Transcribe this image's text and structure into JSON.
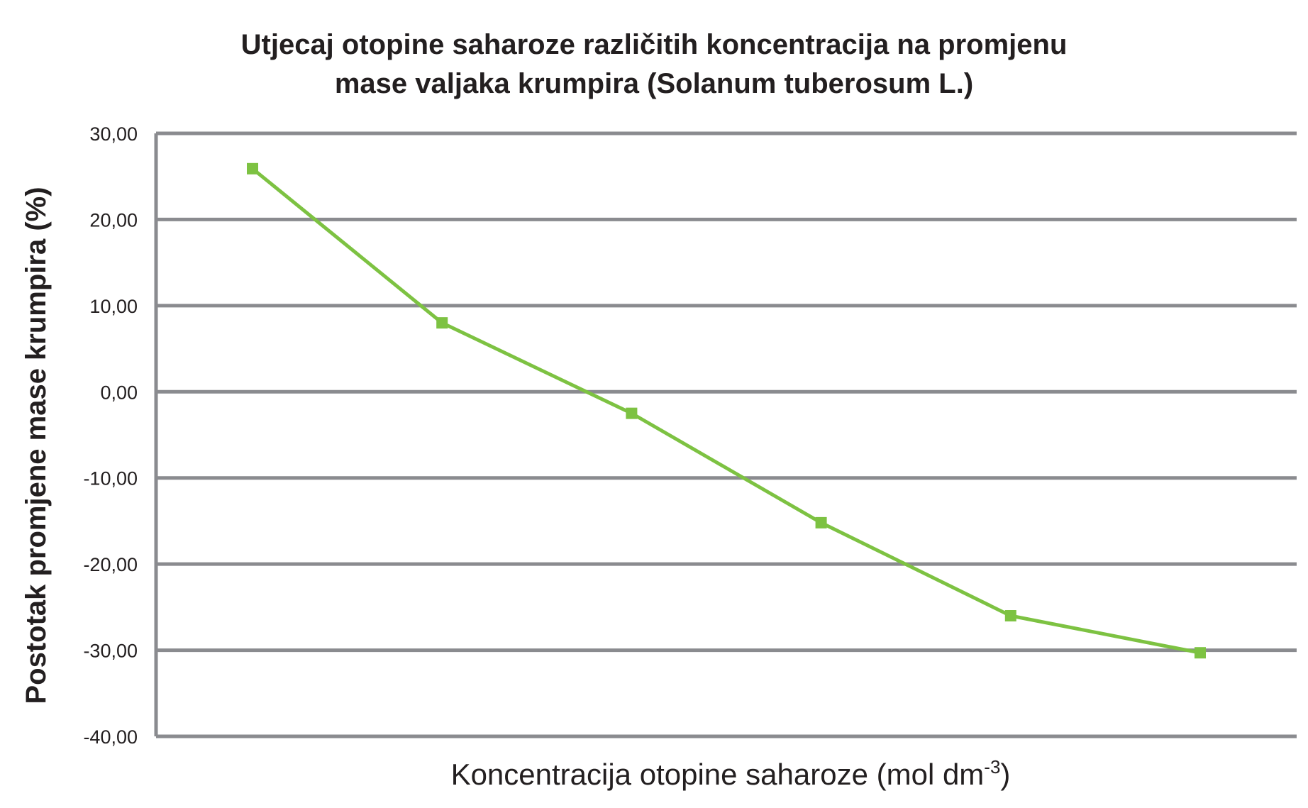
{
  "chart_data": {
    "type": "line",
    "title_lines": [
      "Utjecaj otopine saharoze različitih koncentracija na promjenu",
      "mase valjaka krumpira (Solanum tuberosum L.)"
    ],
    "xlabel": "Koncentracija otopine saharoze (mol dm",
    "xlabel_superscript": "-3",
    "xlabel_suffix": ")",
    "ylabel": "Postotak promjene mase krumpira (%)",
    "ylim": [
      -40,
      30
    ],
    "yticks": [
      {
        "value": 30,
        "label": "30,00"
      },
      {
        "value": 20,
        "label": "20,00"
      },
      {
        "value": 10,
        "label": "10,00"
      },
      {
        "value": 0,
        "label": "0,00"
      },
      {
        "value": -10,
        "label": "-10,00"
      },
      {
        "value": -20,
        "label": "-20,00"
      },
      {
        "value": -30,
        "label": "-30,00"
      },
      {
        "value": -40,
        "label": "-40,00"
      }
    ],
    "grid": true,
    "series": [
      {
        "values": [
          25.9,
          8.0,
          -2.5,
          -15.2,
          -26.0,
          -30.3
        ],
        "color": "#7dc242",
        "marker": "square"
      }
    ],
    "gridline_color": "#8a8b8f"
  }
}
